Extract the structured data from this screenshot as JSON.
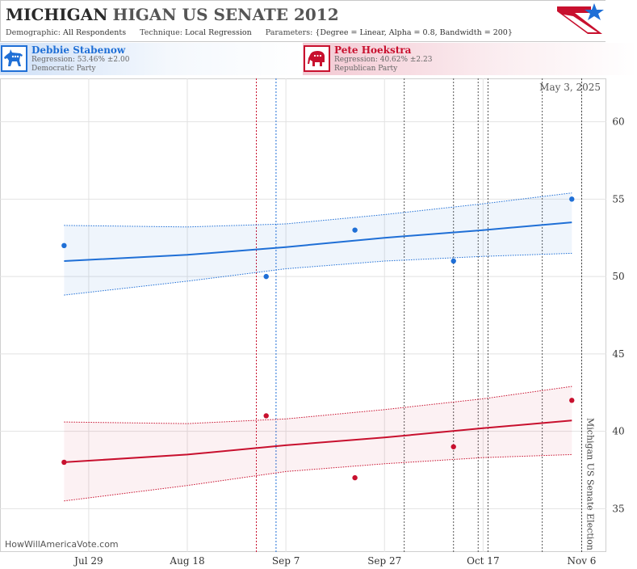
{
  "header": {
    "title_state": "MICHIGAN",
    "title_race": "HIGAN US SENATE 2012",
    "demographic_label": "Demographic:",
    "demographic_value": "All Respondents",
    "technique_label": "Technique:",
    "technique_value": "Local Regression",
    "parameters_label": "Parameters:",
    "parameters_value": "{Degree = Linear, Alpha = 0.8, Bandwidth = 200}"
  },
  "candidates": {
    "dem": {
      "name": "Debbie Stabenow",
      "regression": "Regression: 53.46% ±2.00",
      "party": "Democratic Party",
      "color": "#1f6fd6"
    },
    "rep": {
      "name": "Pete Hoekstra",
      "regression": "Regression: 40.62% ±2.23",
      "party": "Republican Party",
      "color": "#c8102e"
    }
  },
  "watermark": "HowWillAmericaVote.com",
  "chart_data": {
    "type": "line",
    "date_stamp": "May 3, 2025",
    "event_label": "Michigan US Senate Election",
    "event_date": "2012-11-06",
    "x_ticks": [
      {
        "date": "2012-07-29",
        "label": "Jul 29"
      },
      {
        "date": "2012-08-18",
        "label": "Aug 18"
      },
      {
        "date": "2012-09-07",
        "label": "Sep 7"
      },
      {
        "date": "2012-09-27",
        "label": "Sep 27"
      },
      {
        "date": "2012-10-17",
        "label": "Oct 17"
      },
      {
        "date": "2012-11-06",
        "label": "Nov 6"
      }
    ],
    "x_range": [
      "2012-07-11",
      "2012-11-11"
    ],
    "y_ticks": [
      35,
      40,
      45,
      50,
      55,
      60
    ],
    "ylim": [
      32.2,
      62.8
    ],
    "grid": true,
    "poll_date_lines": [
      {
        "date": "2012-09-01",
        "party": "rep"
      },
      {
        "date": "2012-09-05",
        "party": "dem"
      },
      {
        "date": "2012-10-01",
        "party": "neutral"
      },
      {
        "date": "2012-10-11",
        "party": "neutral"
      },
      {
        "date": "2012-10-16",
        "party": "neutral"
      },
      {
        "date": "2012-10-18",
        "party": "neutral"
      },
      {
        "date": "2012-10-29",
        "party": "neutral"
      }
    ],
    "series": [
      {
        "name": "Debbie Stabenow",
        "color": "#1f6fd6",
        "polls": [
          {
            "date": "2012-07-24",
            "value": 52
          },
          {
            "date": "2012-09-03",
            "value": 50
          },
          {
            "date": "2012-09-21",
            "value": 53
          },
          {
            "date": "2012-10-11",
            "value": 51
          },
          {
            "date": "2012-11-04",
            "value": 55
          }
        ],
        "regression": [
          {
            "date": "2012-07-24",
            "value": 51.0
          },
          {
            "date": "2012-08-18",
            "value": 51.4
          },
          {
            "date": "2012-09-07",
            "value": 51.9
          },
          {
            "date": "2012-09-27",
            "value": 52.5
          },
          {
            "date": "2012-10-17",
            "value": 53.0
          },
          {
            "date": "2012-11-04",
            "value": 53.5
          }
        ],
        "upper": [
          {
            "date": "2012-07-24",
            "value": 53.3
          },
          {
            "date": "2012-08-18",
            "value": 53.2
          },
          {
            "date": "2012-09-07",
            "value": 53.4
          },
          {
            "date": "2012-09-27",
            "value": 54.0
          },
          {
            "date": "2012-10-17",
            "value": 54.7
          },
          {
            "date": "2012-11-04",
            "value": 55.4
          }
        ],
        "lower": [
          {
            "date": "2012-07-24",
            "value": 48.8
          },
          {
            "date": "2012-08-18",
            "value": 49.7
          },
          {
            "date": "2012-09-07",
            "value": 50.5
          },
          {
            "date": "2012-09-27",
            "value": 51.0
          },
          {
            "date": "2012-10-17",
            "value": 51.3
          },
          {
            "date": "2012-11-04",
            "value": 51.5
          }
        ]
      },
      {
        "name": "Pete Hoekstra",
        "color": "#c8102e",
        "polls": [
          {
            "date": "2012-07-24",
            "value": 38
          },
          {
            "date": "2012-09-03",
            "value": 41
          },
          {
            "date": "2012-09-21",
            "value": 37
          },
          {
            "date": "2012-10-11",
            "value": 39
          },
          {
            "date": "2012-11-04",
            "value": 42
          }
        ],
        "regression": [
          {
            "date": "2012-07-24",
            "value": 38.0
          },
          {
            "date": "2012-08-18",
            "value": 38.5
          },
          {
            "date": "2012-09-07",
            "value": 39.1
          },
          {
            "date": "2012-09-27",
            "value": 39.6
          },
          {
            "date": "2012-10-17",
            "value": 40.2
          },
          {
            "date": "2012-11-04",
            "value": 40.7
          }
        ],
        "upper": [
          {
            "date": "2012-07-24",
            "value": 40.6
          },
          {
            "date": "2012-08-18",
            "value": 40.5
          },
          {
            "date": "2012-09-07",
            "value": 40.8
          },
          {
            "date": "2012-09-27",
            "value": 41.4
          },
          {
            "date": "2012-10-17",
            "value": 42.1
          },
          {
            "date": "2012-11-04",
            "value": 42.9
          }
        ],
        "lower": [
          {
            "date": "2012-07-24",
            "value": 35.5
          },
          {
            "date": "2012-08-18",
            "value": 36.5
          },
          {
            "date": "2012-09-07",
            "value": 37.4
          },
          {
            "date": "2012-09-27",
            "value": 37.9
          },
          {
            "date": "2012-10-17",
            "value": 38.3
          },
          {
            "date": "2012-11-04",
            "value": 38.5
          }
        ]
      }
    ]
  }
}
